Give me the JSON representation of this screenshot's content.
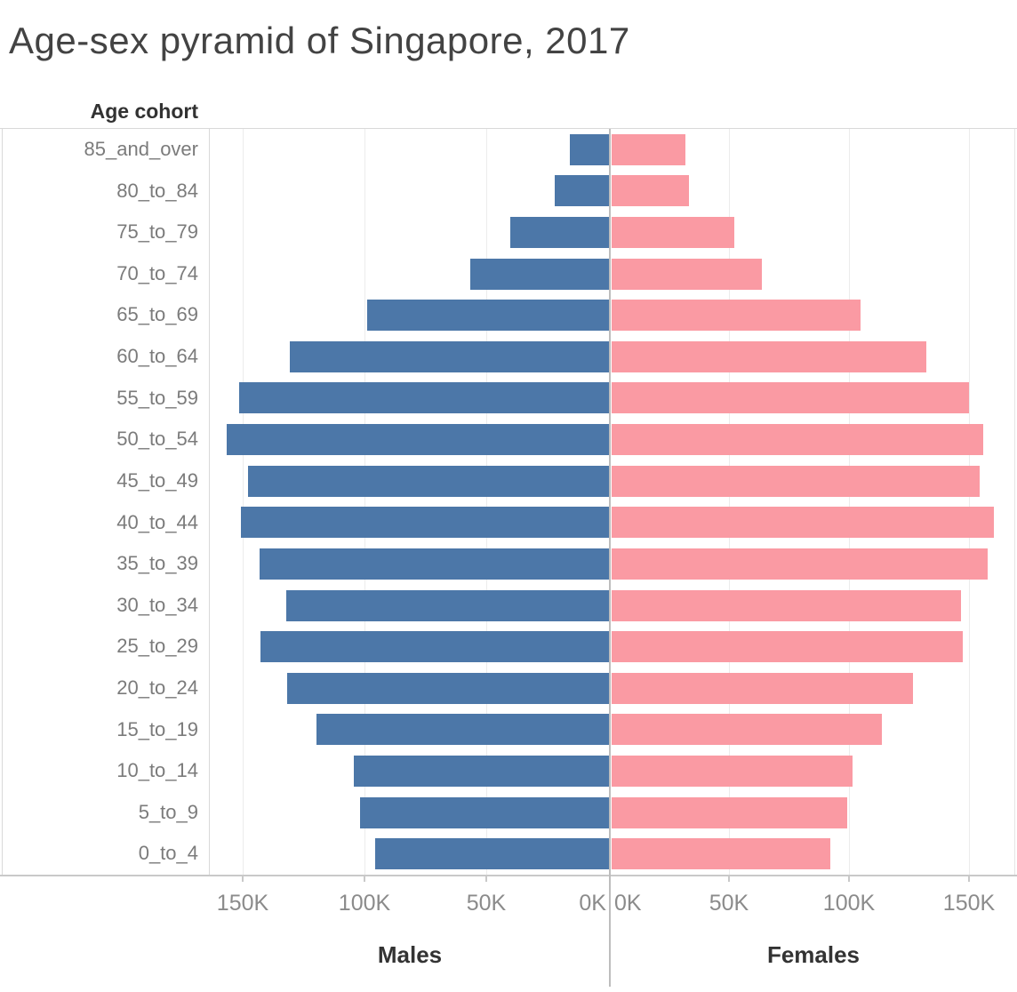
{
  "chart_data": {
    "type": "bar",
    "subtype": "population-pyramid",
    "title": "Age-sex pyramid of Singapore, 2017",
    "y_axis_label": "Age cohort",
    "unit": "thousands of persons",
    "categories_top_to_bottom": [
      "85_and_over",
      "80_to_84",
      "75_to_79",
      "70_to_74",
      "65_to_69",
      "60_to_64",
      "55_to_59",
      "50_to_54",
      "45_to_49",
      "40_to_44",
      "35_to_39",
      "30_to_34",
      "25_to_29",
      "20_to_24",
      "15_to_19",
      "10_to_14",
      "5_to_9",
      "0_to_4"
    ],
    "series": [
      {
        "name": "Males",
        "side": "left",
        "color": "#4c77a8",
        "values_thousands": [
          16.5,
          22.5,
          40.7,
          57.1,
          99.2,
          130.8,
          151.3,
          156.6,
          147.9,
          150.8,
          143.0,
          132.3,
          142.9,
          131.9,
          119.7,
          104.6,
          102.2,
          95.9
        ]
      },
      {
        "name": "Females",
        "side": "right",
        "color": "#fa9aa3",
        "values_thousands": [
          30.9,
          32.4,
          51.6,
          63.1,
          104.6,
          132.1,
          150.0,
          155.8,
          154.3,
          160.5,
          157.8,
          146.7,
          147.5,
          126.6,
          113.5,
          101.2,
          98.8,
          91.8
        ]
      }
    ],
    "x_axis": {
      "male_tick_labels": [
        "150K",
        "100K",
        "50K",
        "0K"
      ],
      "female_tick_labels": [
        "0K",
        "50K",
        "100K",
        "150K"
      ],
      "tick_step_thousands": 50,
      "max_thousands": 164,
      "gridlines": true
    },
    "layout_hint": "males mirrored left of center divider, females to the right"
  },
  "colors": {
    "male_bar": "#4c77a8",
    "female_bar": "#fa9aa3",
    "gridline": "#ececec",
    "divider": "#bdbdbd",
    "title_text": "#434343",
    "label_text": "#7b7b7b"
  }
}
